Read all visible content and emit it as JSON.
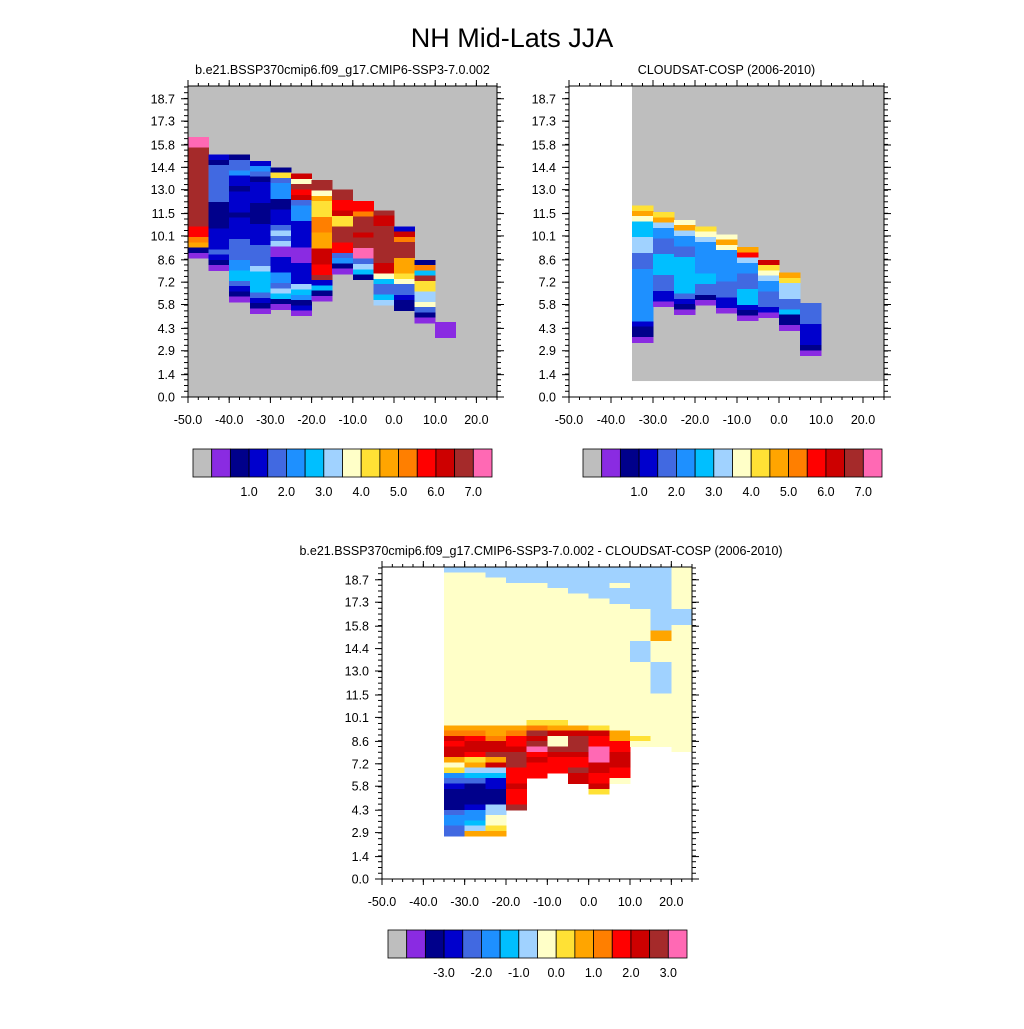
{
  "page_title": "NH Mid-Lats JJA",
  "colors": {
    "abs_palette": [
      "#bebebe",
      "#8a2be2",
      "#00008b",
      "#0000cd",
      "#4169e1",
      "#1e90ff",
      "#00bfff",
      "#a0d2ff",
      "#ffffc8",
      "#ffe135",
      "#ffa500",
      "#ff7f00",
      "#ff0000",
      "#cd0000",
      "#a52a2a",
      "#ff69b4"
    ],
    "diff_palette": [
      "#bebebe",
      "#8a2be2",
      "#00008b",
      "#0000cd",
      "#4169e1",
      "#1e90ff",
      "#00bfff",
      "#a0d2ff",
      "#ffffc8",
      "#ffe135",
      "#ffa500",
      "#ff7f00",
      "#ff0000",
      "#cd0000",
      "#a52a2a",
      "#ff69b4"
    ],
    "missing": "#bebebe"
  },
  "chart_data": [
    {
      "type": "heatmap",
      "title": "b.e21.BSSP370cmip6.f09_g17.CMIP6-SSP3-7.0.002",
      "xlim": [
        -50,
        25
      ],
      "ylim": [
        0,
        19.5
      ],
      "x_ticks": [
        "-50.0",
        "-40.0",
        "-30.0",
        "-20.0",
        "-10.0",
        "0.0",
        "10.0",
        "20.0"
      ],
      "y_ticks": [
        "0.0",
        "1.4",
        "2.9",
        "4.3",
        "5.8",
        "7.2",
        "8.6",
        "10.1",
        "11.5",
        "13.0",
        "14.4",
        "15.8",
        "17.3",
        "18.7"
      ],
      "colorbar_labels": [
        "1.0",
        "2.0",
        "3.0",
        "4.0",
        "5.0",
        "6.0",
        "7.0"
      ],
      "background": "missing",
      "cols": [
        {
          "x0": -50,
          "x1": -45,
          "top": 16.3,
          "cells": "Q:5R:4P:2O:15M:2L:1K:1C:1B:1"
        },
        {
          "x0": -45,
          "x1": -40,
          "top": 15.2,
          "cells": "D:1C:1E:7C:5D:4E:1D:1C:1B:1"
        },
        {
          "x0": -40,
          "x1": -35,
          "top": 15.2,
          "cells": "C:1E:2F:1D:2C:1D:4C:1D:4E:4F:2G:2E:1D:1C:1B:1"
        },
        {
          "x0": -35,
          "x1": -30,
          "top": 14.8,
          "cells": "D:1F:1E:1C:1D:4C:4D:4E:4H:1G:4E:1D:1C:1B:1"
        },
        {
          "x0": -30,
          "x1": -25,
          "top": 14.4,
          "cells": "C:1J:1E:1F:3C:2D:3E:1H:1E:1H:1B:2D:3F:2E:1H:1G:1C:1B:1"
        },
        {
          "x0": -25,
          "x1": -20,
          "top": 14.0,
          "cells": "N:1I:1O:1M:1N:1E:1F:3D:5B:3D:4H:1G:1F:1C:1D:1B:1"
        },
        {
          "x0": -20,
          "x1": -15,
          "top": 13.6,
          "cells": "O:2I:1K:1J:3L:3K:3N:3M:2O:1D:1G:1C:1B:1"
        },
        {
          "x0": -15,
          "x1": -10,
          "top": 13.0,
          "cells": "O:2M:2N:1J:2Q:9O:3M:2E:1F:1C:1B:1"
        },
        {
          "x0": -10,
          "x1": -5,
          "top": 12.3,
          "cells": "M:2L:1O:3Q:9N:1O:2P:2E:1H:1G:1C:1"
        },
        {
          "x0": -5,
          "x1": 0,
          "top": 11.7,
          "cells": "Q:1O:1N:2O:7N:2I:1G:1E:2G:1H:1"
        },
        {
          "x0": 0,
          "x1": 5,
          "top": 10.7,
          "cells": "D:1N:1L:1O:3K:3J:1I:1E:2D:1C:2"
        },
        {
          "x0": 5,
          "x1": 10,
          "top": 8.6,
          "cells": "C:1L:1G:1O:1J:2H:2I:1E:1C:1B:1"
        },
        {
          "x0": 10,
          "x1": 15,
          "top": 4.7,
          "cells": "B:3"
        }
      ]
    },
    {
      "type": "heatmap",
      "title": "CLOUDSAT-COSP (2006-2010)",
      "xlim": [
        -50,
        25
      ],
      "ylim": [
        0,
        19.5
      ],
      "x_ticks": [
        "-50.0",
        "-40.0",
        "-30.0",
        "-20.0",
        "-10.0",
        "0.0",
        "10.0",
        "20.0"
      ],
      "y_ticks": [
        "0.0",
        "1.4",
        "2.9",
        "4.3",
        "5.8",
        "7.2",
        "8.6",
        "10.1",
        "11.5",
        "13.0",
        "14.4",
        "15.8",
        "17.3",
        "18.7"
      ],
      "colorbar_labels": [
        "1.0",
        "2.0",
        "3.0",
        "4.0",
        "5.0",
        "6.0",
        "7.0"
      ],
      "background": "missing",
      "blank_region": [
        -50,
        -35,
        1.0
      ],
      "cols": [
        {
          "x0": -35,
          "x1": -30,
          "top": 12.0,
          "cells": "J:1K:1I:1G:3H:3E:3F:10D:1C:2B:1"
        },
        {
          "x0": -30,
          "x1": -25,
          "top": 11.6,
          "cells": "J:1K:1H:1F:2E:3G:4E:3D:2B:1"
        },
        {
          "x0": -25,
          "x1": -20,
          "top": 11.1,
          "cells": "I:1K:1H:1F:2E:2G:7E:1D:1C:1B:1"
        },
        {
          "x0": -20,
          "x1": -15,
          "top": 10.7,
          "cells": "J:1I:1H:1F:6G:2E:2C:1B:1"
        },
        {
          "x0": -15,
          "x1": -10,
          "top": 10.2,
          "cells": "I:1K:1I:1F:6E:3D:2B:1"
        },
        {
          "x0": -10,
          "x1": -5,
          "top": 9.4,
          "cells": "K:1M:1H:1F:2E:3G:3D:1C:1B:1"
        },
        {
          "x0": -5,
          "x1": 0,
          "top": 8.6,
          "cells": "N:1J:1I:1H:1F:2E:3D:1B:1"
        },
        {
          "x0": 0,
          "x1": 5,
          "top": 7.8,
          "cells": "K:1J:1H:3E:2G:1C:2B:1"
        },
        {
          "x0": 5,
          "x1": 10,
          "top": 5.9,
          "cells": "E:4D:4C:1B:1"
        }
      ]
    },
    {
      "type": "heatmap",
      "title": "b.e21.BSSP370cmip6.f09_g17.CMIP6-SSP3-7.0.002 - CLOUDSAT-COSP (2006-2010)",
      "xlim": [
        -50,
        25
      ],
      "ylim": [
        0,
        19.5
      ],
      "x_ticks": [
        "-50.0",
        "-40.0",
        "-30.0",
        "-20.0",
        "-10.0",
        "0.0",
        "10.0",
        "20.0"
      ],
      "y_ticks": [
        "0.0",
        "1.4",
        "2.9",
        "4.3",
        "5.8",
        "7.2",
        "8.6",
        "10.1",
        "11.5",
        "13.0",
        "14.4",
        "15.8",
        "17.3",
        "18.7"
      ],
      "colorbar_labels": [
        "-3.0",
        "-2.0",
        "-1.0",
        "0.0",
        "1.0",
        "2.0",
        "3.0"
      ],
      "background": "white",
      "cols": [
        {
          "x0": -35,
          "x1": -30,
          "top": 19.5,
          "cells": "H:1I:29K:1L:1N:1M:1N:2K:1I:1J:1F:1E:1D:1C:4E:1F:2E:2"
        },
        {
          "x0": -30,
          "x1": -25,
          "top": 19.5,
          "cells": "H:1I:29K:1L:1M:1N:2M:1J:1K:1H:1G:1E:1C:4D:1F:2G:1H:1K:1"
        },
        {
          "x0": -25,
          "x1": -20,
          "top": 19.5,
          "cells": "H:2I:28K:2L:1N:2O:1K:1N:1H:1G:1D:2C:3H:2I:2J:1K:1"
        },
        {
          "x0": -20,
          "x1": -15,
          "top": 19.5,
          "cells": "H:3I:27K:1L:1M:2N:1Q:2O:3M:3N:1M:3O:1"
        },
        {
          "x0": -15,
          "x1": -10,
          "top": 19.5,
          "cells": "H:3I:26J:1L:1O:1N:1Q:10O:1P:1M:1N:1M:3"
        },
        {
          "x0": -10,
          "x1": -5,
          "top": 19.5,
          "cells": "H:4I:25J:1K:1N:1Q:11I:2O:1N:1M:3"
        },
        {
          "x0": -5,
          "x1": 0,
          "top": 19.5,
          "cells": "H:5I:25K:1N:1Q:6O:3N:1M:2O:1N:2"
        },
        {
          "x0": 0,
          "x1": 5,
          "top": 19.5,
          "cells": "H:6I:24J:1N:1M:2P:3N:2M:2N:1J:1"
        },
        {
          "x0": 5,
          "x1": 10,
          "top": 19.5,
          "cells": "H:3I:1H:3I:24K:2M:2N:3M:2I:1"
        },
        {
          "x0": 10,
          "x1": 15,
          "top": 19.5,
          "cells": "H:8I:6H:4I:14J:1I:1"
        },
        {
          "x0": 15,
          "x1": 20,
          "top": 19.5,
          "cells": "H:12K:2I:4H:6I:10"
        },
        {
          "x0": 20,
          "x1": 25,
          "top": 19.5,
          "cells": "I:8H:3I:24"
        }
      ]
    }
  ]
}
